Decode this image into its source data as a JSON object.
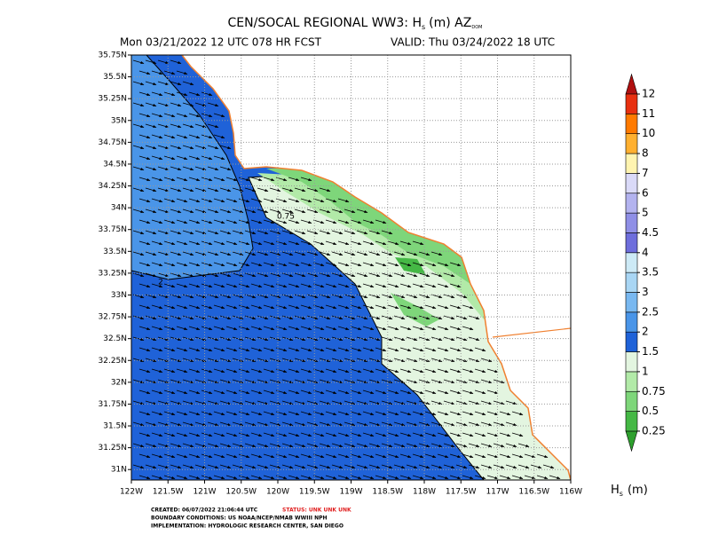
{
  "header": {
    "title_main": "CEN/SOCAL REGIONAL WW3: H",
    "title_sub": "s",
    "title_unit": "(m) AZ",
    "title_sub2": "DOM",
    "subtitle_left": "Mon 03/21/2022 12 UTC 078 HR FCST",
    "subtitle_right": "VALID: Thu 03/24/2022 18 UTC"
  },
  "map": {
    "xlim": [
      -122,
      -116
    ],
    "ylim": [
      30.88,
      35.75
    ],
    "grid": true,
    "xticks": [
      {
        "value": -122,
        "label": "122W"
      },
      {
        "value": -121.5,
        "label": "121.5W"
      },
      {
        "value": -121,
        "label": "121W"
      },
      {
        "value": -120.5,
        "label": "120.5W"
      },
      {
        "value": -120,
        "label": "120W"
      },
      {
        "value": -119.5,
        "label": "119.5W"
      },
      {
        "value": -119,
        "label": "119W"
      },
      {
        "value": -118.5,
        "label": "118.5W"
      },
      {
        "value": -118,
        "label": "118W"
      },
      {
        "value": -117.5,
        "label": "117.5W"
      },
      {
        "value": -117,
        "label": "117W"
      },
      {
        "value": -116.5,
        "label": "116.5W"
      },
      {
        "value": -116,
        "label": "116W"
      }
    ],
    "yticks": [
      {
        "value": 35.75,
        "label": "35.75N"
      },
      {
        "value": 35.5,
        "label": "35.5N"
      },
      {
        "value": 35.25,
        "label": "35.25N"
      },
      {
        "value": 35,
        "label": "35N"
      },
      {
        "value": 34.75,
        "label": "34.75N"
      },
      {
        "value": 34.5,
        "label": "34.5N"
      },
      {
        "value": 34.25,
        "label": "34.25N"
      },
      {
        "value": 34,
        "label": "34N"
      },
      {
        "value": 33.75,
        "label": "33.75N"
      },
      {
        "value": 33.5,
        "label": "33.5N"
      },
      {
        "value": 33.25,
        "label": "33.25N"
      },
      {
        "value": 33,
        "label": "33N"
      },
      {
        "value": 32.75,
        "label": "32.75N"
      },
      {
        "value": 32.5,
        "label": "32.5N"
      },
      {
        "value": 32.25,
        "label": "32.25N"
      },
      {
        "value": 32,
        "label": "32N"
      },
      {
        "value": 31.75,
        "label": "31.75N"
      },
      {
        "value": 31.5,
        "label": "31.5N"
      },
      {
        "value": 31.25,
        "label": "31.25N"
      },
      {
        "value": 31,
        "label": "31N"
      }
    ],
    "contour_labels": [
      "2",
      "0.75"
    ]
  },
  "colorbar": {
    "levels": [
      0.25,
      0.5,
      0.75,
      1,
      1.5,
      2,
      2.5,
      3,
      3.5,
      4,
      4.5,
      5,
      6,
      7,
      8,
      10,
      11,
      12
    ],
    "colors": [
      "#2ea02e",
      "#45b845",
      "#7ed67a",
      "#b2eaa8",
      "#e3f5e0",
      "#1f62d8",
      "#4a95e8",
      "#79b8f0",
      "#a9d6f4",
      "#cdeaf6",
      "#6e6edc",
      "#8f8fe6",
      "#b3b3ef",
      "#dadaf8",
      "#fff4b0",
      "#ffb030",
      "#ff7a00",
      "#e83010",
      "#b01010"
    ],
    "label_main": "H",
    "label_sub": "s",
    "label_unit": "(m)"
  },
  "footer": {
    "created": "CREATED: 06/07/2022 21:06:44 UTC",
    "status": "STATUS: UNK UNK UNK",
    "boundary": "BOUNDARY CONDITIONS: US NOAA/NCEP/NMAB WWIII NPH",
    "implementation": "IMPLEMENTATION: HYDROLOGIC RESEARCH CENTER, SAN DIEGO"
  }
}
